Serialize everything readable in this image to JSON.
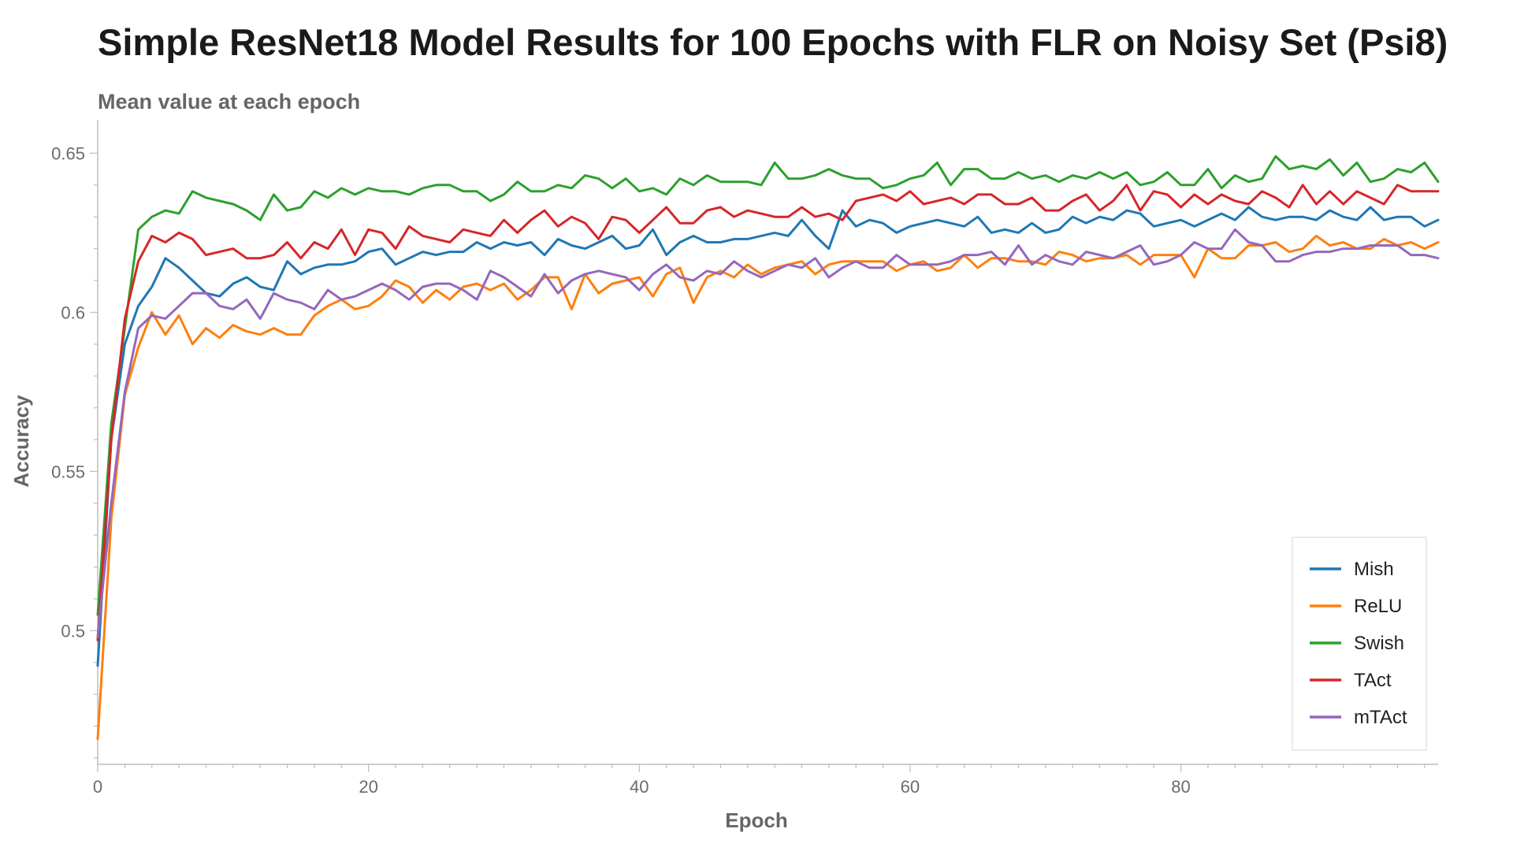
{
  "chart_data": {
    "type": "line",
    "title": "Simple ResNet18 Model Results for 100 Epochs with FLR on Noisy Set (Psi8)",
    "subtitle": "Mean value at each epoch",
    "xlabel": "Epoch",
    "ylabel": "Accuracy",
    "xlim": [
      0,
      99
    ],
    "ylim": [
      0.458,
      0.659
    ],
    "x_ticks": [
      0,
      20,
      40,
      60,
      80
    ],
    "x_tick_labels": [
      "0",
      "20",
      "40",
      "60",
      "80"
    ],
    "y_ticks": [
      0.5,
      0.55,
      0.6,
      0.65
    ],
    "y_tick_labels": [
      "0.5",
      "0.55",
      "0.6",
      "0.65"
    ],
    "grid": false,
    "legend_position": "bottom-right",
    "series": [
      {
        "name": "Mish",
        "color": "#1f77b4",
        "values": [
          0.489,
          0.56,
          0.59,
          0.602,
          0.608,
          0.617,
          0.614,
          0.61,
          0.606,
          0.605,
          0.609,
          0.611,
          0.608,
          0.607,
          0.616,
          0.612,
          0.614,
          0.615,
          0.615,
          0.616,
          0.619,
          0.62,
          0.615,
          0.617,
          0.619,
          0.618,
          0.619,
          0.619,
          0.622,
          0.62,
          0.622,
          0.621,
          0.622,
          0.618,
          0.623,
          0.621,
          0.62,
          0.622,
          0.624,
          0.62,
          0.621,
          0.626,
          0.618,
          0.622,
          0.624,
          0.622,
          0.622,
          0.623,
          0.623,
          0.624,
          0.625,
          0.624,
          0.629,
          0.624,
          0.62,
          0.632,
          0.627,
          0.629,
          0.628,
          0.625,
          0.627,
          0.628,
          0.629,
          0.628,
          0.627,
          0.63,
          0.625,
          0.626,
          0.625,
          0.628,
          0.625,
          0.626,
          0.63,
          0.628,
          0.63,
          0.629,
          0.632,
          0.631,
          0.627,
          0.628,
          0.629,
          0.627,
          0.629,
          0.631,
          0.629,
          0.633,
          0.63,
          0.629,
          0.63,
          0.63,
          0.629,
          0.632,
          0.63,
          0.629,
          0.633,
          0.629,
          0.63,
          0.63,
          0.627,
          0.629
        ]
      },
      {
        "name": "ReLU",
        "color": "#ff7f0e",
        "values": [
          0.466,
          0.535,
          0.574,
          0.589,
          0.6,
          0.593,
          0.599,
          0.59,
          0.595,
          0.592,
          0.596,
          0.594,
          0.593,
          0.595,
          0.593,
          0.593,
          0.599,
          0.602,
          0.604,
          0.601,
          0.602,
          0.605,
          0.61,
          0.608,
          0.603,
          0.607,
          0.604,
          0.608,
          0.609,
          0.607,
          0.609,
          0.604,
          0.607,
          0.611,
          0.611,
          0.601,
          0.612,
          0.606,
          0.609,
          0.61,
          0.611,
          0.605,
          0.612,
          0.614,
          0.603,
          0.611,
          0.613,
          0.611,
          0.615,
          0.612,
          0.614,
          0.615,
          0.616,
          0.612,
          0.615,
          0.616,
          0.616,
          0.616,
          0.616,
          0.613,
          0.615,
          0.616,
          0.613,
          0.614,
          0.618,
          0.614,
          0.617,
          0.617,
          0.616,
          0.616,
          0.615,
          0.619,
          0.618,
          0.616,
          0.617,
          0.617,
          0.618,
          0.615,
          0.618,
          0.618,
          0.618,
          0.611,
          0.62,
          0.617,
          0.617,
          0.621,
          0.621,
          0.622,
          0.619,
          0.62,
          0.624,
          0.621,
          0.622,
          0.62,
          0.62,
          0.623,
          0.621,
          0.622,
          0.62,
          0.622
        ]
      },
      {
        "name": "Swish",
        "color": "#2ca02c",
        "values": [
          0.505,
          0.565,
          0.595,
          0.626,
          0.63,
          0.632,
          0.631,
          0.638,
          0.636,
          0.635,
          0.634,
          0.632,
          0.629,
          0.637,
          0.632,
          0.633,
          0.638,
          0.636,
          0.639,
          0.637,
          0.639,
          0.638,
          0.638,
          0.637,
          0.639,
          0.64,
          0.64,
          0.638,
          0.638,
          0.635,
          0.637,
          0.641,
          0.638,
          0.638,
          0.64,
          0.639,
          0.643,
          0.642,
          0.639,
          0.642,
          0.638,
          0.639,
          0.637,
          0.642,
          0.64,
          0.643,
          0.641,
          0.641,
          0.641,
          0.64,
          0.647,
          0.642,
          0.642,
          0.643,
          0.645,
          0.643,
          0.642,
          0.642,
          0.639,
          0.64,
          0.642,
          0.643,
          0.647,
          0.64,
          0.645,
          0.645,
          0.642,
          0.642,
          0.644,
          0.642,
          0.643,
          0.641,
          0.643,
          0.642,
          0.644,
          0.642,
          0.644,
          0.64,
          0.641,
          0.644,
          0.64,
          0.64,
          0.645,
          0.639,
          0.643,
          0.641,
          0.642,
          0.649,
          0.645,
          0.646,
          0.645,
          0.648,
          0.643,
          0.647,
          0.641,
          0.642,
          0.645,
          0.644,
          0.647,
          0.641
        ]
      },
      {
        "name": "TAct",
        "color": "#d62728",
        "values": [
          0.497,
          0.56,
          0.598,
          0.616,
          0.624,
          0.622,
          0.625,
          0.623,
          0.618,
          0.619,
          0.62,
          0.617,
          0.617,
          0.618,
          0.622,
          0.617,
          0.622,
          0.62,
          0.626,
          0.618,
          0.626,
          0.625,
          0.62,
          0.627,
          0.624,
          0.623,
          0.622,
          0.626,
          0.625,
          0.624,
          0.629,
          0.625,
          0.629,
          0.632,
          0.627,
          0.63,
          0.628,
          0.623,
          0.63,
          0.629,
          0.625,
          0.629,
          0.633,
          0.628,
          0.628,
          0.632,
          0.633,
          0.63,
          0.632,
          0.631,
          0.63,
          0.63,
          0.633,
          0.63,
          0.631,
          0.629,
          0.635,
          0.636,
          0.637,
          0.635,
          0.638,
          0.634,
          0.635,
          0.636,
          0.634,
          0.637,
          0.637,
          0.634,
          0.634,
          0.636,
          0.632,
          0.632,
          0.635,
          0.637,
          0.632,
          0.635,
          0.64,
          0.632,
          0.638,
          0.637,
          0.633,
          0.637,
          0.634,
          0.637,
          0.635,
          0.634,
          0.638,
          0.636,
          0.633,
          0.64,
          0.634,
          0.638,
          0.634,
          0.638,
          0.636,
          0.634,
          0.64,
          0.638,
          0.638,
          0.638
        ]
      },
      {
        "name": "mTAct",
        "color": "#9467bd",
        "values": [
          0.498,
          0.54,
          0.575,
          0.595,
          0.599,
          0.598,
          0.602,
          0.606,
          0.606,
          0.602,
          0.601,
          0.604,
          0.598,
          0.606,
          0.604,
          0.603,
          0.601,
          0.607,
          0.604,
          0.605,
          0.607,
          0.609,
          0.607,
          0.604,
          0.608,
          0.609,
          0.609,
          0.607,
          0.604,
          0.613,
          0.611,
          0.608,
          0.605,
          0.612,
          0.606,
          0.61,
          0.612,
          0.613,
          0.612,
          0.611,
          0.607,
          0.612,
          0.615,
          0.611,
          0.61,
          0.613,
          0.612,
          0.616,
          0.613,
          0.611,
          0.613,
          0.615,
          0.614,
          0.617,
          0.611,
          0.614,
          0.616,
          0.614,
          0.614,
          0.618,
          0.615,
          0.615,
          0.615,
          0.616,
          0.618,
          0.618,
          0.619,
          0.615,
          0.621,
          0.615,
          0.618,
          0.616,
          0.615,
          0.619,
          0.618,
          0.617,
          0.619,
          0.621,
          0.615,
          0.616,
          0.618,
          0.622,
          0.62,
          0.62,
          0.626,
          0.622,
          0.621,
          0.616,
          0.616,
          0.618,
          0.619,
          0.619,
          0.62,
          0.62,
          0.621,
          0.621,
          0.621,
          0.618,
          0.618,
          0.617
        ]
      }
    ]
  }
}
